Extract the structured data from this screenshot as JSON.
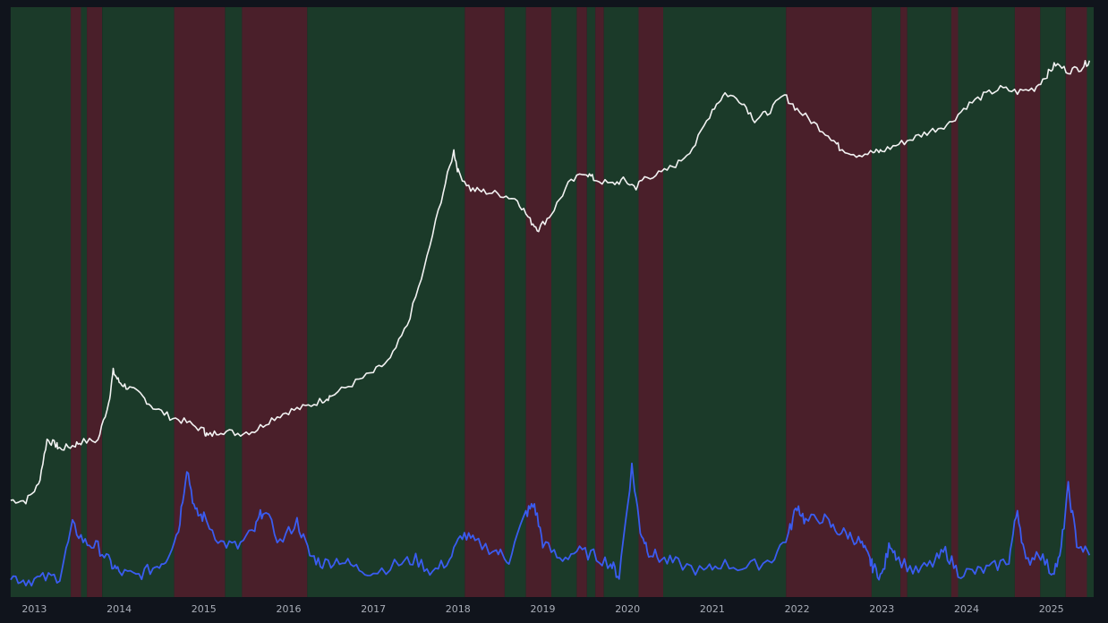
{
  "chart_data": {
    "type": "line",
    "title": "",
    "xlabel": "",
    "ylabel": "",
    "x_tick_labels": [
      "2013",
      "2014",
      "2015",
      "2016",
      "2017",
      "2018",
      "2019",
      "2020",
      "2021",
      "2022",
      "2023",
      "2024",
      "2025"
    ],
    "xlim": [
      2012.7,
      2025.5
    ],
    "grid": false,
    "legend": "none",
    "y_axis": "log-like, unlabeled",
    "colors": {
      "background": "#10141c",
      "bullish_regime": "#1b3a29",
      "bearish_regime": "#4a1f2a",
      "price_line": "#f2f2f2",
      "oscillator_line": "#3a5cf0"
    },
    "regime_bands": [
      {
        "start": 2012.72,
        "end": 2013.43,
        "regime": "bullish"
      },
      {
        "start": 2013.43,
        "end": 2013.55,
        "regime": "bearish"
      },
      {
        "start": 2013.55,
        "end": 2013.62,
        "regime": "bullish"
      },
      {
        "start": 2013.62,
        "end": 2013.8,
        "regime": "bearish"
      },
      {
        "start": 2013.8,
        "end": 2014.65,
        "regime": "bullish"
      },
      {
        "start": 2014.65,
        "end": 2015.25,
        "regime": "bearish"
      },
      {
        "start": 2015.25,
        "end": 2015.45,
        "regime": "bullish"
      },
      {
        "start": 2015.45,
        "end": 2016.22,
        "regime": "bearish"
      },
      {
        "start": 2016.22,
        "end": 2018.08,
        "regime": "bullish"
      },
      {
        "start": 2018.08,
        "end": 2018.55,
        "regime": "bearish"
      },
      {
        "start": 2018.55,
        "end": 2018.8,
        "regime": "bullish"
      },
      {
        "start": 2018.8,
        "end": 2019.1,
        "regime": "bearish"
      },
      {
        "start": 2019.1,
        "end": 2019.4,
        "regime": "bullish"
      },
      {
        "start": 2019.4,
        "end": 2019.52,
        "regime": "bearish"
      },
      {
        "start": 2019.52,
        "end": 2019.62,
        "regime": "bullish"
      },
      {
        "start": 2019.62,
        "end": 2019.72,
        "regime": "bearish"
      },
      {
        "start": 2019.72,
        "end": 2020.13,
        "regime": "bullish"
      },
      {
        "start": 2020.13,
        "end": 2020.42,
        "regime": "bearish"
      },
      {
        "start": 2020.42,
        "end": 2021.87,
        "regime": "bullish"
      },
      {
        "start": 2021.87,
        "end": 2022.88,
        "regime": "bearish"
      },
      {
        "start": 2022.88,
        "end": 2023.22,
        "regime": "bullish"
      },
      {
        "start": 2023.22,
        "end": 2023.3,
        "regime": "bearish"
      },
      {
        "start": 2023.3,
        "end": 2023.82,
        "regime": "bullish"
      },
      {
        "start": 2023.82,
        "end": 2023.9,
        "regime": "bearish"
      },
      {
        "start": 2023.9,
        "end": 2024.57,
        "regime": "bullish"
      },
      {
        "start": 2024.57,
        "end": 2024.87,
        "regime": "bearish"
      },
      {
        "start": 2024.87,
        "end": 2025.17,
        "regime": "bullish"
      },
      {
        "start": 2025.17,
        "end": 2025.42,
        "regime": "bearish"
      },
      {
        "start": 2025.42,
        "end": 2025.5,
        "regime": "bullish"
      }
    ],
    "series": [
      {
        "role": "price",
        "x": [
          2012.72,
          2012.9,
          2013.05,
          2013.15,
          2013.25,
          2013.3,
          2013.45,
          2013.55,
          2013.75,
          2013.88,
          2013.93,
          2014.0,
          2014.1,
          2014.25,
          2014.4,
          2014.6,
          2014.8,
          2015.0,
          2015.05,
          2015.2,
          2015.4,
          2015.6,
          2015.8,
          2016.0,
          2016.2,
          2016.4,
          2016.5,
          2016.75,
          2017.0,
          2017.2,
          2017.4,
          2017.6,
          2017.8,
          2017.95,
          2018.0,
          2018.15,
          2018.3,
          2018.5,
          2018.7,
          2018.85,
          2018.95,
          2019.1,
          2019.3,
          2019.5,
          2019.6,
          2019.8,
          2019.95,
          2020.1,
          2020.2,
          2020.4,
          2020.6,
          2020.8,
          2021.0,
          2021.15,
          2021.35,
          2021.5,
          2021.65,
          2021.85,
          2022.0,
          2022.2,
          2022.4,
          2022.5,
          2022.7,
          2022.9,
          2023.0,
          2023.2,
          2023.4,
          2023.6,
          2023.8,
          2024.0,
          2024.2,
          2024.4,
          2024.6,
          2024.8,
          2024.95,
          2025.05,
          2025.2,
          2025.35,
          2025.45
        ],
        "y": [
          8,
          7,
          30,
          95,
          88,
          82,
          86,
          92,
          94,
          150,
          193,
          178,
          170,
          160,
          142,
          128,
          120,
          108,
          100,
          108,
          104,
          108,
          125,
          136,
          142,
          152,
          158,
          175,
          192,
          210,
          260,
          340,
          440,
          510,
          480,
          455,
          452,
          448,
          440,
          410,
          398,
          420,
          462,
          480,
          470,
          462,
          468,
          458,
          472,
          478,
          493,
          520,
          570,
          593,
          582,
          555,
          565,
          590,
          570,
          550,
          530,
          515,
          505,
          508,
          510,
          520,
          530,
          540,
          550,
          575,
          590,
          600,
          595,
          600,
          620,
          635,
          625,
          630,
          640
        ]
      },
      {
        "role": "oscillator",
        "x": [
          2012.72,
          2012.9,
          2013.1,
          2013.3,
          2013.45,
          2013.6,
          2013.75,
          2013.9,
          2014.0,
          2014.2,
          2014.4,
          2014.55,
          2014.7,
          2014.8,
          2014.9,
          2015.0,
          2015.2,
          2015.4,
          2015.6,
          2015.7,
          2015.9,
          2016.1,
          2016.25,
          2016.4,
          2016.6,
          2016.8,
          2017.0,
          2017.3,
          2017.5,
          2017.7,
          2017.9,
          2018.05,
          2018.2,
          2018.45,
          2018.6,
          2018.8,
          2018.9,
          2019.0,
          2019.2,
          2019.4,
          2019.6,
          2019.8,
          2019.9,
          2020.05,
          2020.15,
          2020.25,
          2020.4,
          2020.6,
          2020.9,
          2021.1,
          2021.4,
          2021.7,
          2021.9,
          2022.0,
          2022.1,
          2022.3,
          2022.45,
          2022.6,
          2022.75,
          2022.85,
          2022.9,
          2023.0,
          2023.1,
          2023.2,
          2023.4,
          2023.6,
          2023.75,
          2023.9,
          2024.1,
          2024.3,
          2024.5,
          2024.6,
          2024.7,
          2024.85,
          2025.0,
          2025.1,
          2025.2,
          2025.3,
          2025.45
        ],
        "y": [
          6,
          4,
          5,
          6,
          30,
          22,
          20,
          12,
          8,
          6,
          10,
          14,
          28,
          58,
          36,
          34,
          22,
          20,
          28,
          38,
          22,
          32,
          16,
          12,
          14,
          10,
          8,
          12,
          14,
          8,
          14,
          26,
          22,
          18,
          14,
          36,
          40,
          22,
          14,
          18,
          16,
          12,
          6,
          58,
          28,
          18,
          14,
          12,
          8,
          12,
          10,
          14,
          26,
          40,
          32,
          34,
          28,
          26,
          22,
          14,
          10,
          6,
          22,
          14,
          8,
          12,
          18,
          8,
          8,
          10,
          14,
          38,
          12,
          18,
          8,
          14,
          48,
          22,
          16
        ]
      }
    ]
  }
}
